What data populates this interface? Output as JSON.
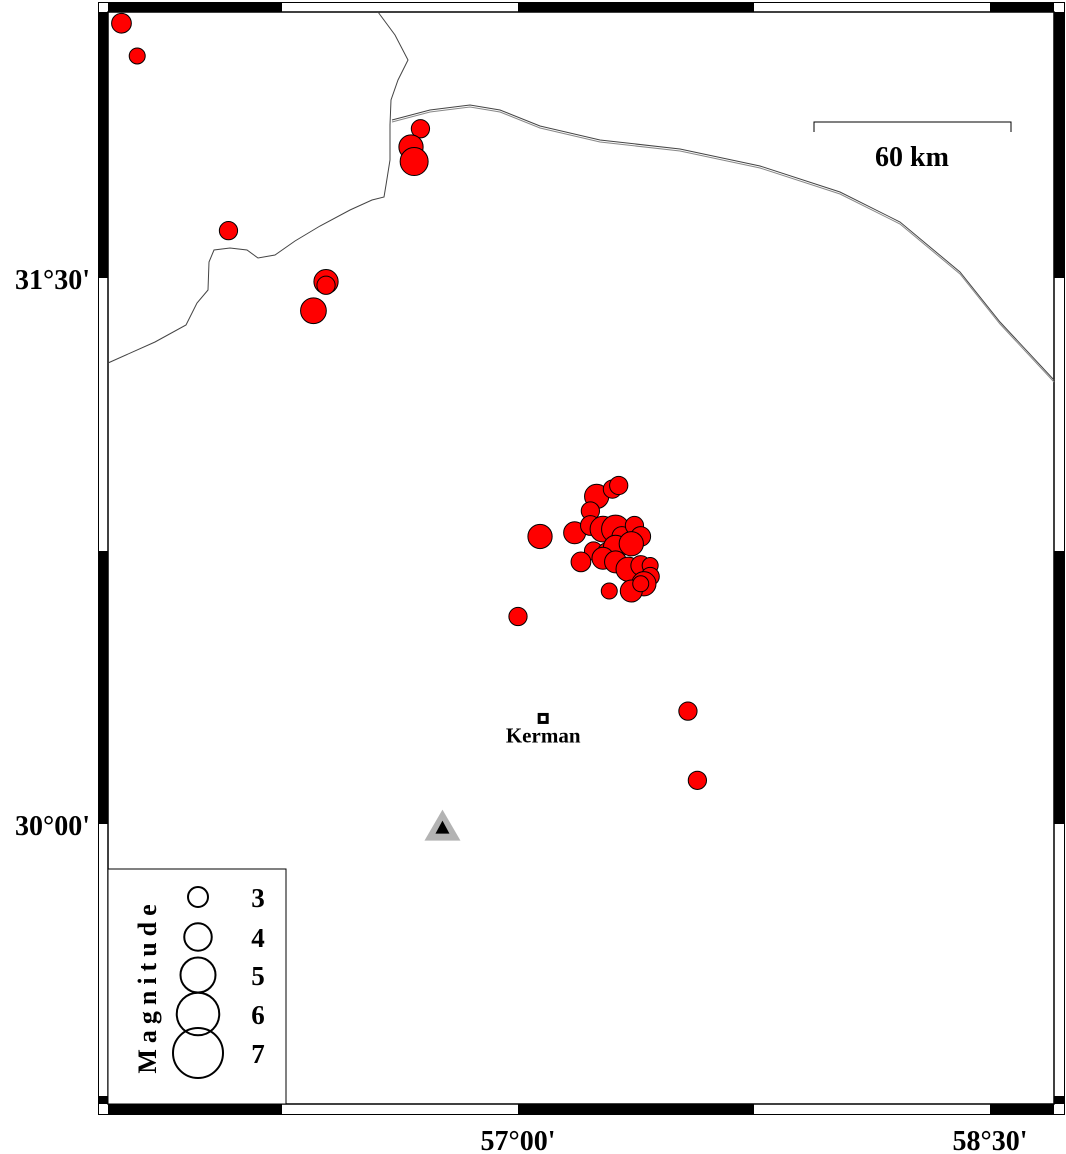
{
  "map": {
    "lon_range": [
      55.7,
      58.7
    ],
    "lat_range": [
      29.23,
      32.23
    ],
    "x_ticks": [
      {
        "value": 57.0,
        "label": "57°00'"
      },
      {
        "value": 58.5,
        "label": "58°30'"
      }
    ],
    "y_ticks": [
      {
        "value": 31.5,
        "label": "31°30'"
      },
      {
        "value": 30.0,
        "label": "30°00'"
      }
    ],
    "frame_interval_deg": 0.75,
    "scale_bar": {
      "label": "60 km",
      "length_km": 60
    },
    "city": {
      "name": "Kerman",
      "lon": 57.08,
      "lat": 30.29
    },
    "station": {
      "symbol": "triangle",
      "lon": 56.76,
      "lat": 29.99
    },
    "colors": {
      "event_fill": "#ff0000",
      "event_stroke": "#000000",
      "station_outer": "#b3b3b3",
      "station_inner": "#000000",
      "boundary": "#444444"
    }
  },
  "legend": {
    "title": "Magnitude",
    "entries": [
      {
        "mag": 3,
        "label": "3"
      },
      {
        "mag": 4,
        "label": "4"
      },
      {
        "mag": 5,
        "label": "5"
      },
      {
        "mag": 6,
        "label": "6"
      },
      {
        "mag": 7,
        "label": "7"
      }
    ]
  },
  "events": [
    {
      "lon": 55.74,
      "lat": 32.2,
      "mag": 2.7
    },
    {
      "lon": 55.79,
      "lat": 32.11,
      "mag": 2.2
    },
    {
      "lon": 56.69,
      "lat": 31.91,
      "mag": 2.5
    },
    {
      "lon": 56.66,
      "lat": 31.86,
      "mag": 3.3
    },
    {
      "lon": 56.67,
      "lat": 31.82,
      "mag": 3.8
    },
    {
      "lon": 56.08,
      "lat": 31.63,
      "mag": 2.5
    },
    {
      "lon": 56.39,
      "lat": 31.49,
      "mag": 3.3
    },
    {
      "lon": 56.39,
      "lat": 31.48,
      "mag": 2.5
    },
    {
      "lon": 56.35,
      "lat": 31.41,
      "mag": 3.5
    },
    {
      "lon": 57.07,
      "lat": 30.79,
      "mag": 3.3
    },
    {
      "lon": 57.0,
      "lat": 30.57,
      "mag": 2.5
    },
    {
      "lon": 57.54,
      "lat": 30.31,
      "mag": 2.5
    },
    {
      "lon": 57.57,
      "lat": 30.12,
      "mag": 2.5
    },
    {
      "lon": 57.25,
      "lat": 30.9,
      "mag": 3.3
    },
    {
      "lon": 57.3,
      "lat": 30.92,
      "mag": 2.5
    },
    {
      "lon": 57.32,
      "lat": 30.93,
      "mag": 2.5
    },
    {
      "lon": 57.23,
      "lat": 30.86,
      "mag": 2.5
    },
    {
      "lon": 57.18,
      "lat": 30.8,
      "mag": 3.0
    },
    {
      "lon": 57.23,
      "lat": 30.82,
      "mag": 2.7
    },
    {
      "lon": 57.27,
      "lat": 30.81,
      "mag": 3.5
    },
    {
      "lon": 57.31,
      "lat": 30.81,
      "mag": 3.8
    },
    {
      "lon": 57.33,
      "lat": 30.79,
      "mag": 2.7
    },
    {
      "lon": 57.37,
      "lat": 30.82,
      "mag": 2.5
    },
    {
      "lon": 57.39,
      "lat": 30.79,
      "mag": 2.7
    },
    {
      "lon": 57.24,
      "lat": 30.75,
      "mag": 2.5
    },
    {
      "lon": 57.28,
      "lat": 30.75,
      "mag": 2.2
    },
    {
      "lon": 57.2,
      "lat": 30.72,
      "mag": 2.7
    },
    {
      "lon": 57.31,
      "lat": 30.76,
      "mag": 3.3
    },
    {
      "lon": 57.36,
      "lat": 30.77,
      "mag": 3.3
    },
    {
      "lon": 57.27,
      "lat": 30.73,
      "mag": 3.0
    },
    {
      "lon": 57.31,
      "lat": 30.72,
      "mag": 3.0
    },
    {
      "lon": 57.35,
      "lat": 30.7,
      "mag": 3.3
    },
    {
      "lon": 57.39,
      "lat": 30.71,
      "mag": 2.7
    },
    {
      "lon": 57.42,
      "lat": 30.71,
      "mag": 2.2
    },
    {
      "lon": 57.42,
      "lat": 30.68,
      "mag": 2.5
    },
    {
      "lon": 57.4,
      "lat": 30.66,
      "mag": 3.3
    },
    {
      "lon": 57.36,
      "lat": 30.64,
      "mag": 3.0
    },
    {
      "lon": 57.39,
      "lat": 30.66,
      "mag": 2.2
    },
    {
      "lon": 57.29,
      "lat": 30.64,
      "mag": 2.2
    }
  ]
}
